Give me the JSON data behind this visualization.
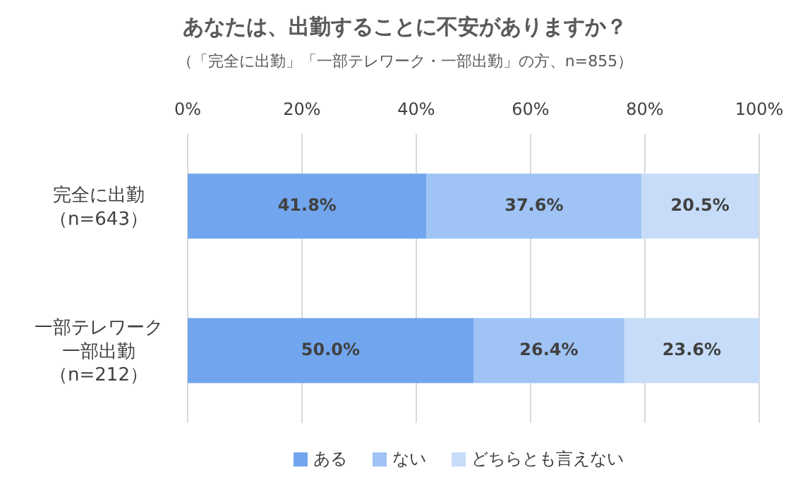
{
  "chart_data": {
    "type": "bar",
    "orientation": "horizontal",
    "stacked": true,
    "title": "あなたは、出勤することに不安がありますか？",
    "subtitle": "（「完全に出勤」「一部テレワーク・一部出勤」の方、n=855）",
    "categories": [
      "完全に出勤（n=643）",
      "一部テレワーク一部出勤（n=212）"
    ],
    "series": [
      {
        "name": "ある",
        "color": "#71a6ee",
        "values": [
          41.8,
          50.0
        ],
        "value_labels": [
          "41.8%",
          "50.0%"
        ]
      },
      {
        "name": "ない",
        "color": "#9fc3f4",
        "values": [
          37.6,
          26.4
        ],
        "value_labels": [
          "37.6%",
          "26.4%"
        ]
      },
      {
        "name": "どちらとも言えない",
        "color": "#c6dcf8",
        "values": [
          20.5,
          23.6
        ],
        "value_labels": [
          "20.5%",
          "23.6%"
        ]
      }
    ],
    "xlim": [
      0,
      100
    ],
    "xticks": [
      {
        "value": 0,
        "label": "0%"
      },
      {
        "value": 20,
        "label": "20%"
      },
      {
        "value": 40,
        "label": "40%"
      },
      {
        "value": 60,
        "label": "60%"
      },
      {
        "value": 80,
        "label": "80%"
      },
      {
        "value": 100,
        "label": "100%"
      }
    ],
    "grid": "x",
    "legend": "bottom"
  }
}
